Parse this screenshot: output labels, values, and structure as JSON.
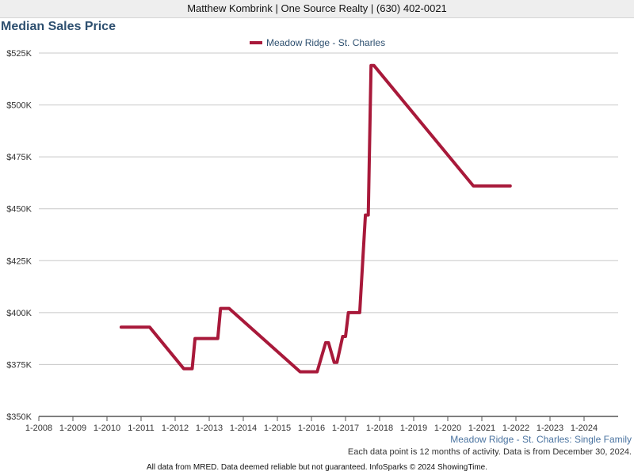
{
  "header": {
    "agent_line": "Matthew Kombrink | One Source Realty | (630) 402-0021"
  },
  "chart_data": {
    "type": "line",
    "title": "Median Sales Price",
    "xlabel": "",
    "ylabel": "",
    "x_ticks": [
      "1-2008",
      "1-2009",
      "1-2010",
      "1-2011",
      "1-2012",
      "1-2013",
      "1-2014",
      "1-2015",
      "1-2016",
      "1-2017",
      "1-2018",
      "1-2019",
      "1-2020",
      "1-2021",
      "1-2022",
      "1-2023",
      "1-2024"
    ],
    "y_ticks": [
      "$350K",
      "$375K",
      "$400K",
      "$425K",
      "$450K",
      "$475K",
      "$500K",
      "$525K"
    ],
    "xlim": [
      "2008-01",
      "2025-01"
    ],
    "ylim": [
      350000,
      525000
    ],
    "grid": true,
    "legend_position": "top-center",
    "series": [
      {
        "name": "Meadow Ridge - St. Charles",
        "color": "#a8193a",
        "points": [
          [
            "2010-06",
            393000
          ],
          [
            "2011-04",
            393000
          ],
          [
            "2012-04",
            373000
          ],
          [
            "2012-07",
            373000
          ],
          [
            "2012-08",
            387500
          ],
          [
            "2013-04",
            387500
          ],
          [
            "2013-05",
            402000
          ],
          [
            "2013-08",
            402000
          ],
          [
            "2015-09",
            371500
          ],
          [
            "2016-03",
            371500
          ],
          [
            "2016-06",
            385500
          ],
          [
            "2016-07",
            385500
          ],
          [
            "2016-09",
            376000
          ],
          [
            "2016-10",
            376000
          ],
          [
            "2016-12",
            388500
          ],
          [
            "2017-01",
            388500
          ],
          [
            "2017-02",
            400000
          ],
          [
            "2017-06",
            400000
          ],
          [
            "2017-08",
            447000
          ],
          [
            "2017-09",
            447000
          ],
          [
            "2017-10",
            519000
          ],
          [
            "2017-11",
            519000
          ],
          [
            "2020-10",
            461000
          ],
          [
            "2021-11",
            461000
          ]
        ]
      }
    ]
  },
  "footer": {
    "series_caption": "Meadow Ridge - St. Charles: Single Family",
    "data_note": "Each data point is 12 months of activity. Data is from December 30, 2024.",
    "disclaimer": "All data from MRED. Data deemed reliable but not guaranteed. InfoSparks © 2024 ShowingTime."
  }
}
